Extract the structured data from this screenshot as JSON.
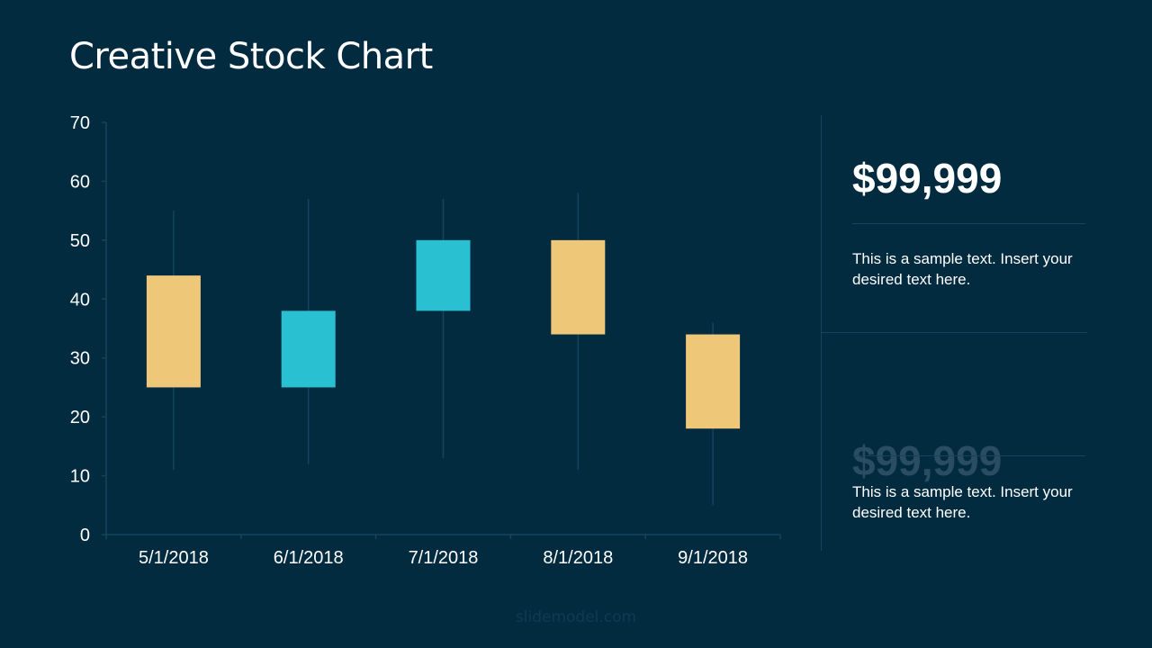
{
  "slide": {
    "title": "Creative Stock Chart",
    "watermark": "slidemodel.com"
  },
  "chart_data": {
    "type": "candlestick",
    "categories": [
      "5/1/2018",
      "6/1/2018",
      "7/1/2018",
      "8/1/2018",
      "9/1/2018"
    ],
    "open": [
      44,
      25,
      38,
      50,
      34
    ],
    "high": [
      55,
      57,
      57,
      58,
      36
    ],
    "low": [
      11,
      12,
      13,
      11,
      5
    ],
    "close": [
      25,
      38,
      50,
      34,
      18
    ],
    "ylim": [
      0,
      70
    ],
    "yticks": [
      0,
      10,
      20,
      30,
      40,
      50,
      60,
      70
    ],
    "grid": false,
    "colors": {
      "up": "#29c0d2",
      "down": "#efc779",
      "wick": "#16445c",
      "axis": "#16445c",
      "background": "#022b40"
    }
  },
  "panel": {
    "items": [
      {
        "price": "$99,999",
        "text": "This is a sample text. Insert your desired text here."
      },
      {
        "price": "$99,999",
        "text": "This is a sample text. Insert your desired text here."
      }
    ]
  }
}
